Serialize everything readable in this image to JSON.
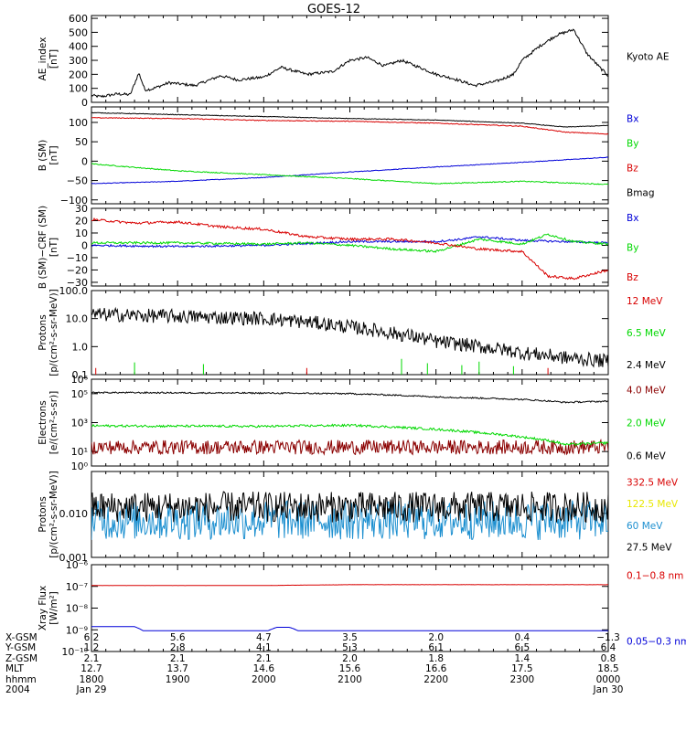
{
  "title": "GOES-12",
  "chart_data": [
    {
      "id": "ae",
      "type": "line",
      "ylabel": [
        "AE_index",
        "[nT]"
      ],
      "ylim": [
        0,
        620
      ],
      "yscale": "linear",
      "yticks": [
        0,
        100,
        200,
        300,
        400,
        500,
        600
      ],
      "ytick_labels": [
        "0",
        "100",
        "200",
        "300",
        "400",
        "500",
        "600"
      ],
      "series": [
        {
          "name": "Kyoto AE",
          "color": "#000000",
          "noise": 10,
          "x": [
            0,
            0.1,
            0.3,
            0.45,
            0.55,
            0.62,
            0.7,
            0.9,
            1.2,
            1.5,
            1.7,
            2.0,
            2.2,
            2.5,
            2.8,
            3.0,
            3.2,
            3.4,
            3.6,
            3.85,
            4.0,
            4.2,
            4.45,
            4.7,
            4.9,
            5.0,
            5.2,
            5.4,
            5.6,
            5.75,
            5.9,
            6.0
          ],
          "y": [
            50,
            40,
            60,
            55,
            210,
            90,
            95,
            140,
            120,
            190,
            160,
            180,
            250,
            200,
            220,
            300,
            320,
            260,
            300,
            240,
            200,
            170,
            120,
            150,
            200,
            300,
            400,
            480,
            520,
            350,
            250,
            190
          ]
        }
      ]
    },
    {
      "id": "bsm",
      "type": "line",
      "ylabel": [
        "B (SM)",
        "[nT]"
      ],
      "ylim": [
        -110,
        140
      ],
      "yscale": "linear",
      "yticks": [
        -100,
        -50,
        0,
        50,
        100
      ],
      "ytick_labels": [
        "−100",
        "−50",
        "0",
        "50",
        "100"
      ],
      "series": [
        {
          "name": "Bx",
          "color": "#0000d8",
          "noise": 0.8,
          "x": [
            0,
            1,
            2,
            3,
            4,
            5,
            6
          ],
          "y": [
            -58,
            -52,
            -42,
            -28,
            -15,
            -3,
            10
          ]
        },
        {
          "name": "By",
          "color": "#00d800",
          "noise": 1.2,
          "x": [
            0,
            1,
            2,
            3,
            4,
            5,
            6
          ],
          "y": [
            -7,
            -25,
            -35,
            -45,
            -58,
            -52,
            -60
          ]
        },
        {
          "name": "Bz",
          "color": "#d80000",
          "noise": 1.0,
          "x": [
            0,
            1,
            2,
            3,
            4,
            5,
            5.5,
            6
          ],
          "y": [
            112,
            110,
            105,
            103,
            98,
            90,
            75,
            70
          ]
        },
        {
          "name": "Bmag",
          "color": "#000000",
          "noise": 0.8,
          "x": [
            0,
            1,
            2,
            3,
            4,
            5,
            5.5,
            6
          ],
          "y": [
            125,
            120,
            115,
            110,
            106,
            98,
            88,
            92
          ]
        }
      ]
    },
    {
      "id": "bdiff",
      "type": "line",
      "ylabel": [
        "B (SM)−CRF (SM)",
        "[nT]"
      ],
      "ylim": [
        -33,
        30
      ],
      "yscale": "linear",
      "yticks": [
        -30,
        -20,
        -10,
        0,
        10,
        20,
        30
      ],
      "ytick_labels": [
        "−30",
        "−20",
        "−10",
        "0",
        "10",
        "20",
        "30"
      ],
      "series": [
        {
          "name": "Bx",
          "color": "#0000d8",
          "noise": 0.8,
          "x": [
            0,
            1,
            2,
            3,
            3.5,
            4,
            4.3,
            4.5,
            5,
            5.5,
            6
          ],
          "y": [
            0,
            -1,
            0,
            3,
            3,
            3,
            5,
            7,
            4,
            3,
            2
          ]
        },
        {
          "name": "By",
          "color": "#00d800",
          "noise": 0.9,
          "x": [
            0,
            1,
            2,
            2.5,
            3,
            3.5,
            4,
            4.5,
            5,
            5.3,
            5.6,
            6
          ],
          "y": [
            2,
            2,
            1,
            2,
            0,
            -3,
            -5,
            5,
            1,
            9,
            3,
            1
          ]
        },
        {
          "name": "Bz",
          "color": "#d80000",
          "noise": 1.0,
          "x": [
            0,
            0.5,
            1,
            1.5,
            2,
            2.5,
            3,
            3.5,
            4,
            4.5,
            5,
            5.3,
            5.6,
            6
          ],
          "y": [
            21,
            18,
            19,
            15,
            13,
            7,
            5,
            5,
            2,
            -3,
            -5,
            -25,
            -27,
            -20
          ]
        }
      ]
    },
    {
      "id": "protons_low",
      "type": "line",
      "ylabel": [
        "Protons",
        "[p/(cm²-s-sr-MeV)]"
      ],
      "ylim": [
        0.1,
        100
      ],
      "yscale": "log",
      "yticks": [
        0.1,
        1,
        10,
        100
      ],
      "ytick_labels": [
        "0.1",
        "1.0",
        "10.0",
        "100.0"
      ],
      "series": [
        {
          "name": "12 MeV",
          "color": "#d80000",
          "noise": 0,
          "x": [
            0.05,
            2.5,
            5.3
          ],
          "y": [
            0.11,
            0.11,
            0.11
          ]
        },
        {
          "name": "6.5 MeV",
          "color": "#00d800",
          "noise": 0,
          "x": [
            0.5,
            1.3,
            3.6,
            3.9,
            4.3,
            4.5,
            4.9
          ],
          "y": [
            0.15,
            0.13,
            0.2,
            0.14,
            0.12,
            0.16,
            0.11
          ]
        },
        {
          "name": "2.4 MeV",
          "color": "#000000",
          "noise": 0.25,
          "x": [
            0,
            1,
            2,
            3,
            3.5,
            4,
            4.5,
            5,
            5.5,
            6
          ],
          "y": [
            14,
            12,
            10,
            5,
            3,
            1.5,
            1,
            0.6,
            0.4,
            0.3
          ]
        }
      ]
    },
    {
      "id": "electrons",
      "type": "line",
      "ylabel": [
        "Electrons",
        "[e/(cm²-s-sr)]"
      ],
      "ylim": [
        1,
        1000000
      ],
      "yscale": "log",
      "yticks": [
        1,
        10,
        1000,
        100000,
        1000000
      ],
      "ytick_labels": [
        "10⁰",
        "10¹",
        "10³",
        "10⁵",
        "10⁶"
      ],
      "series": [
        {
          "name": "4.0 MeV",
          "color": "#8b0000",
          "noise": 0.5,
          "x": [
            0,
            6
          ],
          "y": [
            20,
            20
          ]
        },
        {
          "name": "2.0 MeV",
          "color": "#00d800",
          "noise": 0.08,
          "x": [
            0,
            2,
            3,
            3.8,
            4.5,
            5,
            5.5,
            6
          ],
          "y": [
            600,
            550,
            650,
            400,
            200,
            100,
            30,
            40
          ]
        },
        {
          "name": "0.6 MeV",
          "color": "#000000",
          "noise": 0.05,
          "x": [
            0,
            2,
            3,
            4,
            5,
            5.5,
            6
          ],
          "y": [
            120000,
            110000,
            100000,
            60000,
            40000,
            25000,
            30000
          ]
        }
      ]
    },
    {
      "id": "protons_high",
      "type": "line",
      "ylabel": [
        "Protons",
        "[p/(cm²-s-sr-MeV)]"
      ],
      "ylim": [
        0.001,
        0.09
      ],
      "yscale": "log",
      "yticks": [
        0.001,
        0.01
      ],
      "ytick_labels": [
        "0.001",
        "0.010"
      ],
      "series": [
        {
          "name": "332.5 MeV",
          "color": "#d80000",
          "noise": 0,
          "x": [],
          "y": []
        },
        {
          "name": "122.5 MeV",
          "color": "#e8e800",
          "noise": 0,
          "x": [],
          "y": []
        },
        {
          "name": "60 MeV",
          "color": "#1e90d0",
          "noise": 0.45,
          "x": [
            0,
            6
          ],
          "y": [
            0.007,
            0.007
          ]
        },
        {
          "name": "27.5 MeV",
          "color": "#000000",
          "noise": 0.35,
          "x": [
            0,
            6
          ],
          "y": [
            0.014,
            0.014
          ]
        }
      ]
    },
    {
      "id": "xray",
      "type": "line",
      "ylabel": [
        "Xray Flux",
        "[W/m²]"
      ],
      "ylim": [
        1e-10,
        1e-06
      ],
      "yscale": "log",
      "yticks": [
        1e-10,
        1e-09,
        1e-08,
        1e-07,
        1e-06
      ],
      "ytick_labels": [
        "10⁻¹⁰",
        "10⁻⁹",
        "10⁻⁸",
        "10⁻⁷",
        "10⁻⁶"
      ],
      "series": [
        {
          "name": "0.1−0.8 nm",
          "color": "#d80000",
          "noise": 0.004,
          "x": [
            0,
            2,
            3,
            6
          ],
          "y": [
            1.1e-07,
            1.1e-07,
            1.2e-07,
            1.2e-07
          ]
        },
        {
          "name": "0.05−0.3 nm",
          "color": "#0000d8",
          "noise": 0,
          "x": [
            0,
            0.5,
            0.6,
            0.8,
            2.05,
            2.15,
            2.3,
            2.4,
            6
          ],
          "y": [
            1.4e-09,
            1.4e-09,
            9e-10,
            9e-10,
            9e-10,
            1.3e-09,
            1.3e-09,
            9e-10,
            9e-10
          ]
        }
      ]
    }
  ],
  "x_axis": {
    "xlim": [
      0,
      6
    ],
    "ticks": [
      0,
      1,
      2,
      3,
      4,
      5,
      6
    ],
    "minor_per_major": 6,
    "rows": [
      {
        "label": "X-GSM",
        "values": [
          "6.2",
          "5.6",
          "4.7",
          "3.5",
          "2.0",
          "0.4",
          "−1.3"
        ]
      },
      {
        "label": "Y-GSM",
        "values": [
          "1.2",
          "2.8",
          "4.1",
          "5.3",
          "6.1",
          "6.5",
          "6.4"
        ]
      },
      {
        "label": "Z-GSM",
        "values": [
          "2.1",
          "2.1",
          "2.1",
          "2.0",
          "1.8",
          "1.4",
          "0.8"
        ]
      },
      {
        "label": "MLT",
        "values": [
          "12.7",
          "13.7",
          "14.6",
          "15.6",
          "16.6",
          "17.5",
          "18.5"
        ]
      },
      {
        "label": "hhmm",
        "values": [
          "1800",
          "1900",
          "2000",
          "2100",
          "2200",
          "2300",
          "0000"
        ]
      },
      {
        "label": "2004",
        "values": [
          "Jan 29",
          "",
          "",
          "",
          "",
          "",
          "Jan 30"
        ]
      }
    ]
  }
}
